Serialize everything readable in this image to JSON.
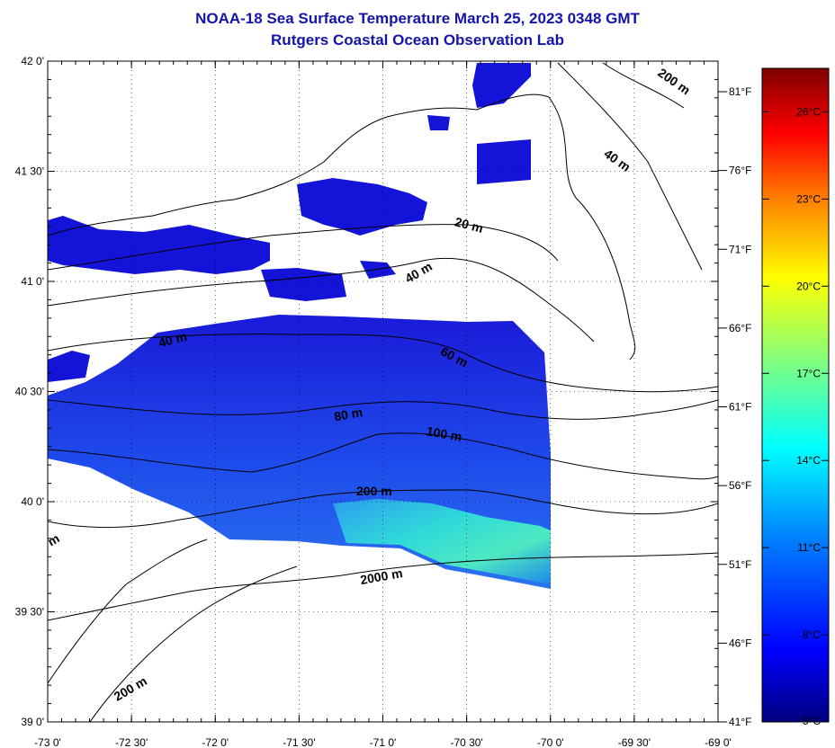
{
  "header": {
    "title": "NOAA-18 Sea Surface Temperature March 25, 2023 0348 GMT",
    "subtitle": "Rutgers Coastal Ocean Observation Lab"
  },
  "map": {
    "lon_range": [
      -73.0,
      -69.0
    ],
    "lat_range": [
      39.0,
      42.0
    ],
    "x_tick_labels": [
      "-73 0'",
      "-72 30'",
      "-72 0'",
      "-71 30'",
      "-71 0'",
      "-70 30'",
      "-70 0'",
      "-69 30'",
      "-69 0'"
    ],
    "y_tick_labels": [
      "42 0'",
      "41 30'",
      "41 0'",
      "40 30'",
      "40 0'",
      "39 30'",
      "39 0'"
    ],
    "f_tick_labels": [
      "81°F",
      "76°F",
      "71°F",
      "66°F",
      "61°F",
      "56°F",
      "51°F",
      "46°F",
      "41°F"
    ],
    "grid": "dotted",
    "isobath_labels": [
      "200 m",
      "40 m",
      "20 m",
      "40 m",
      "40 m",
      "60 m",
      "80 m",
      "100 m",
      "200 m",
      "2000 m",
      "200 m",
      "m"
    ]
  },
  "colorbar": {
    "celsius_labels": [
      "26°C",
      "23°C",
      "20°C",
      "17°C",
      "14°C",
      "11°C",
      "8°C",
      "5°C"
    ],
    "range_c": [
      5,
      27.5
    ],
    "colors": [
      "#00007f",
      "#0000ff",
      "#0080ff",
      "#00ffff",
      "#80ff80",
      "#ffff00",
      "#ff8000",
      "#ff0000",
      "#7f0000"
    ]
  },
  "colors": {
    "title": "#1414a8",
    "sst_cold": "#1a1ad8",
    "sst_mid": "#1f5af0",
    "sst_warm": "#27c8e6"
  }
}
